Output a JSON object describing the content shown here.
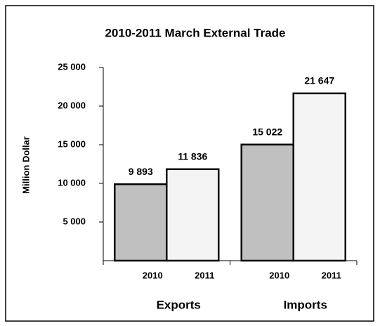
{
  "chart_data": {
    "type": "bar",
    "title": "2010-2011 March External Trade",
    "y_label": "Million Dollar",
    "categories": [
      "Exports",
      "Imports"
    ],
    "series": [
      {
        "name": "2010",
        "color": "#c0c0c0",
        "values": [
          9893,
          15022
        ],
        "value_labels": [
          "9 893",
          "15 022"
        ]
      },
      {
        "name": "2011",
        "color": "#f4f4f4",
        "values": [
          11836,
          21647
        ],
        "value_labels": [
          "11 836",
          "21 647"
        ]
      }
    ],
    "ylim": [
      0,
      25000
    ],
    "yticks": [
      {
        "value": 5000,
        "label": "5 000"
      },
      {
        "value": 10000,
        "label": "10 000"
      },
      {
        "value": 15000,
        "label": "15 000"
      },
      {
        "value": 20000,
        "label": "20 000"
      },
      {
        "value": 25000,
        "label": "25 000"
      }
    ],
    "grid": false
  }
}
